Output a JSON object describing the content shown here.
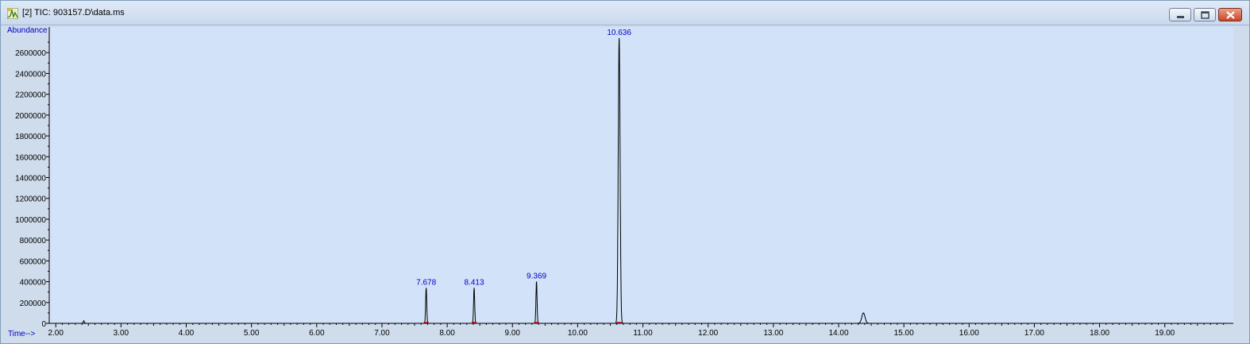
{
  "window": {
    "title": "[2] TIC: 903157.D\\data.ms"
  },
  "icons": {
    "app": "chromatogram-app-icon",
    "minimize": "minimize-icon",
    "maximize": "maximize-icon",
    "close": "close-icon"
  },
  "colors": {
    "plot_bg": "#d2e2f8",
    "trace": "#000000",
    "label": "#0000cc",
    "baseline_marker": "#cc0000"
  },
  "chart_data": {
    "type": "line",
    "title": "",
    "xlabel": "Time-->",
    "ylabel": "Abundance",
    "xlim": [
      1.9,
      20.05
    ],
    "ylim": [
      0,
      2800000
    ],
    "x_ticks": [
      "2.00",
      "3.00",
      "4.00",
      "5.00",
      "6.00",
      "7.00",
      "8.00",
      "9.00",
      "10.00",
      "11.00",
      "12.00",
      "13.00",
      "14.00",
      "15.00",
      "16.00",
      "17.00",
      "18.00",
      "19.00"
    ],
    "x_tick_values": [
      2,
      3,
      4,
      5,
      6,
      7,
      8,
      9,
      10,
      11,
      12,
      13,
      14,
      15,
      16,
      17,
      18,
      19
    ],
    "y_ticks": [
      "0",
      "200000",
      "400000",
      "600000",
      "800000",
      "1000000",
      "1200000",
      "1400000",
      "1600000",
      "1800000",
      "2000000",
      "2200000",
      "2400000",
      "2600000"
    ],
    "y_tick_values": [
      0,
      200000,
      400000,
      600000,
      800000,
      1000000,
      1200000,
      1400000,
      1600000,
      1800000,
      2000000,
      2200000,
      2400000,
      2600000
    ],
    "peaks": [
      {
        "rt": 2.43,
        "height": 25000,
        "label": ""
      },
      {
        "rt": 7.678,
        "height": 340000,
        "label": "7.678"
      },
      {
        "rt": 8.413,
        "height": 340000,
        "label": "8.413"
      },
      {
        "rt": 9.369,
        "height": 400000,
        "label": "9.369"
      },
      {
        "rt": 10.636,
        "height": 2740000,
        "label": "10.636"
      },
      {
        "rt": 14.38,
        "height": 100000,
        "label": ""
      }
    ]
  }
}
